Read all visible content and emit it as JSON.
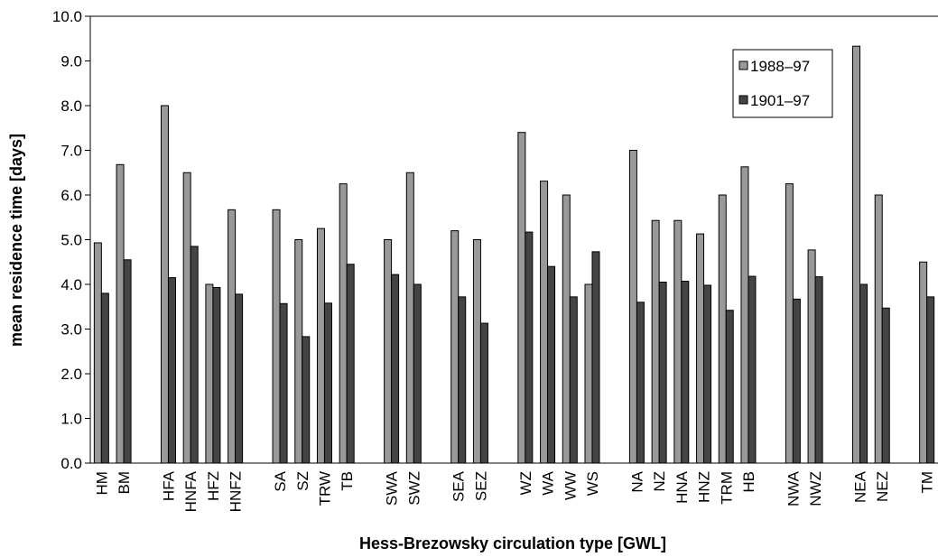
{
  "chart_data": {
    "type": "bar",
    "x_label": "Hess-Brezowsky circulation type [GWL]",
    "y_label": "mean residence time [days]",
    "categories": [
      "HM",
      "BM",
      null,
      "HFA",
      "HNFA",
      "HFZ",
      "HNFZ",
      null,
      "SA",
      "SZ",
      "TRW",
      "TB",
      null,
      "SWA",
      "SWZ",
      null,
      "SEA",
      "SEZ",
      null,
      "WZ",
      "WA",
      "WW",
      "WS",
      null,
      "NA",
      "NZ",
      "HNA",
      "HNZ",
      "TRM",
      "HB",
      null,
      "NWA",
      "NWZ",
      null,
      "NEA",
      "NEZ",
      null,
      "TM"
    ],
    "series": [
      {
        "name": "1988–97",
        "color": "#999999",
        "values": [
          4.93,
          6.68,
          null,
          8.0,
          6.5,
          4.0,
          5.67,
          null,
          5.67,
          5.0,
          5.25,
          6.25,
          null,
          5.0,
          6.5,
          null,
          5.2,
          5.0,
          null,
          7.4,
          6.31,
          6.0,
          4.0,
          null,
          7.0,
          5.43,
          5.43,
          5.13,
          6.0,
          6.63,
          null,
          6.25,
          4.77,
          null,
          9.33,
          6.0,
          null,
          4.5
        ]
      },
      {
        "name": "1901–97",
        "color": "#444444",
        "values": [
          3.8,
          4.55,
          null,
          4.15,
          4.85,
          3.93,
          3.78,
          null,
          3.57,
          2.83,
          3.58,
          4.45,
          null,
          4.22,
          4.0,
          null,
          3.72,
          3.13,
          null,
          5.17,
          4.4,
          3.72,
          4.73,
          null,
          3.6,
          4.05,
          4.07,
          3.98,
          3.42,
          4.18,
          null,
          3.67,
          4.17,
          null,
          4.0,
          3.47,
          null,
          3.72
        ]
      }
    ],
    "ylim": [
      0,
      10
    ],
    "yticks": [
      {
        "value": 0,
        "label": "0.0"
      },
      {
        "value": 1,
        "label": "1.0"
      },
      {
        "value": 2,
        "label": "2.0"
      },
      {
        "value": 3,
        "label": "3.0"
      },
      {
        "value": 4,
        "label": "4.0"
      },
      {
        "value": 5,
        "label": "5.0"
      },
      {
        "value": 6,
        "label": "6.0"
      },
      {
        "value": 7,
        "label": "7.0"
      },
      {
        "value": 8,
        "label": "8.0"
      },
      {
        "value": 9,
        "label": "9.0"
      },
      {
        "value": 10,
        "label": "10.0"
      }
    ],
    "legend": "top-right"
  }
}
